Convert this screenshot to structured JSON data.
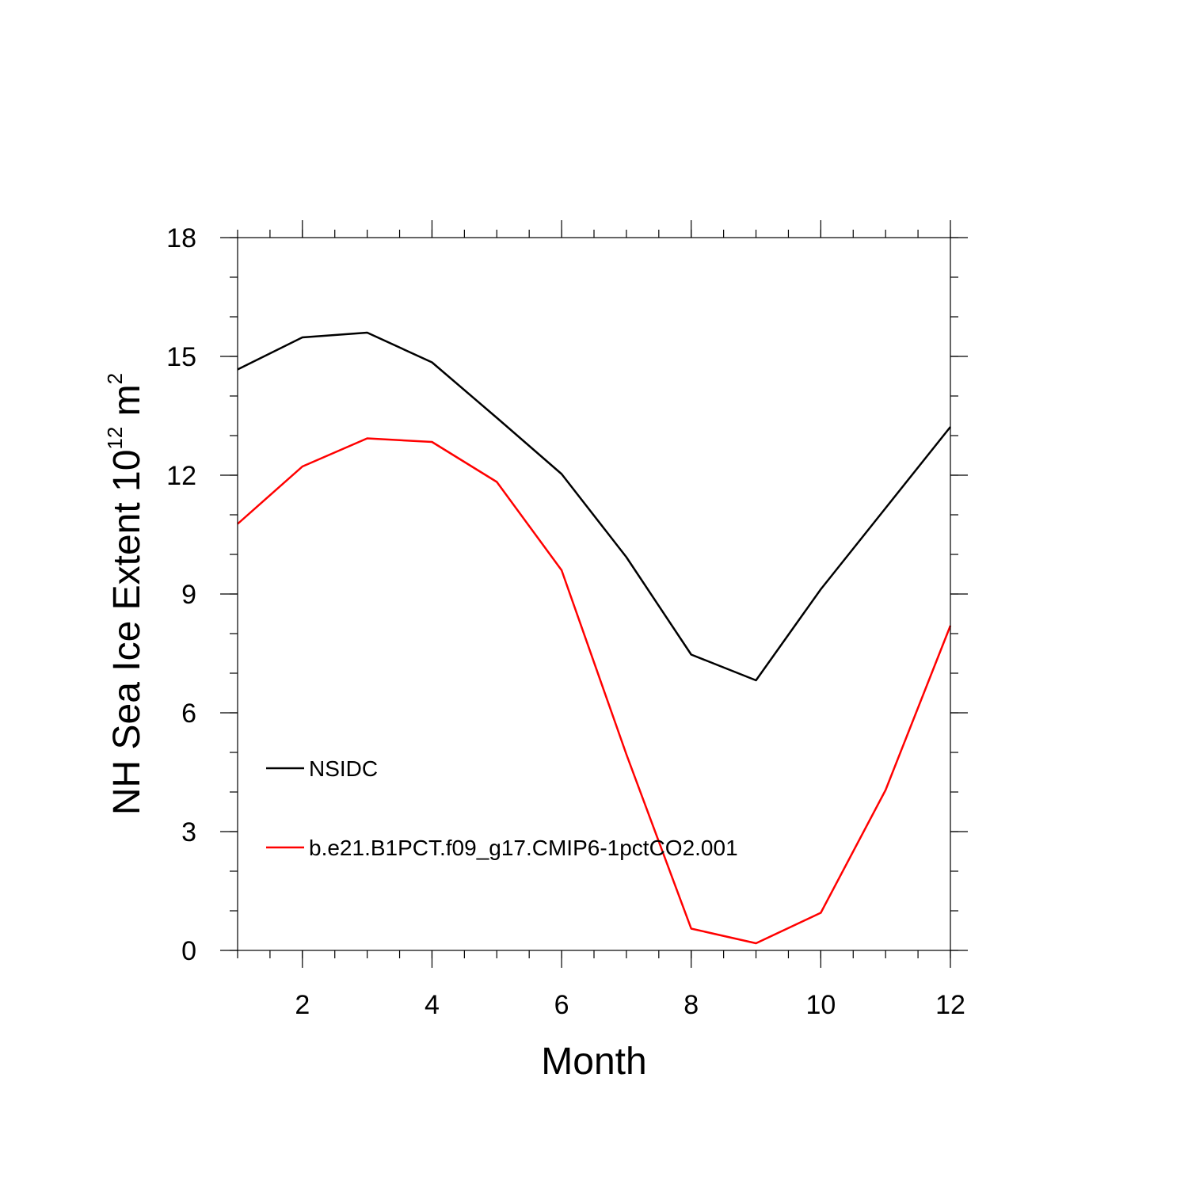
{
  "chart_data": {
    "type": "line",
    "xlabel": "Month",
    "ylabel": {
      "text": "NH Sea Ice Extent 10",
      "superscript_1": "12",
      "unit": " m",
      "superscript_2": "2"
    },
    "xlim": [
      1,
      12
    ],
    "ylim": [
      0,
      18
    ],
    "x_major_ticks": [
      2,
      4,
      6,
      8,
      10,
      12
    ],
    "x_minor_step": 0.5,
    "y_major_ticks": [
      0,
      3,
      6,
      9,
      12,
      15,
      18
    ],
    "y_minor_step": 1,
    "x_tick_labels": [
      "2",
      "4",
      "6",
      "8",
      "10",
      "12"
    ],
    "y_tick_labels": [
      "0",
      "3",
      "6",
      "9",
      "12",
      "15",
      "18"
    ],
    "grid": false,
    "legend_position": "left",
    "x": [
      1,
      2,
      3,
      4,
      5,
      6,
      7,
      8,
      9,
      10,
      11,
      12
    ],
    "series": [
      {
        "name": "NSIDC",
        "color": "#000000",
        "values": [
          14.67,
          15.48,
          15.6,
          14.85,
          13.45,
          12.03,
          9.93,
          7.47,
          6.82,
          9.12,
          11.17,
          13.22
        ]
      },
      {
        "name": "b.e21.B1PCT.f09_g17.CMIP6-1pctCO2.001",
        "color": "#ff0000",
        "values": [
          10.77,
          12.22,
          12.93,
          12.84,
          11.83,
          9.6,
          4.95,
          0.55,
          0.18,
          0.95,
          4.05,
          8.2
        ]
      }
    ]
  }
}
